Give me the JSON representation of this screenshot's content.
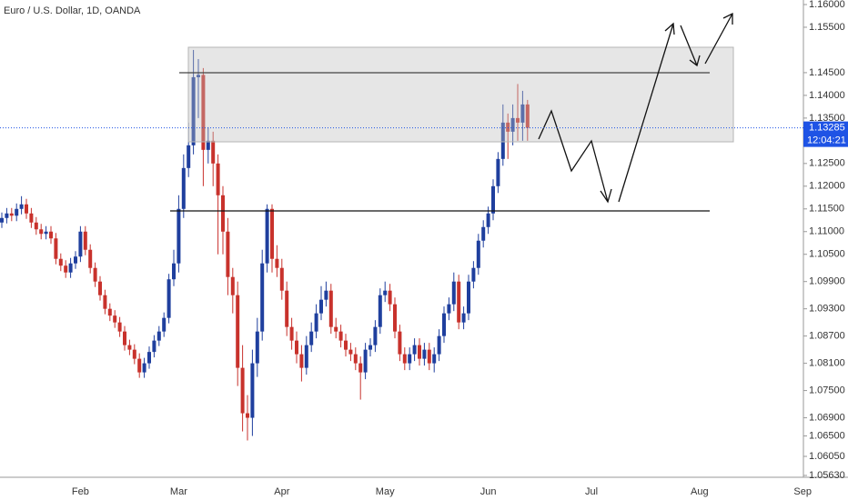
{
  "chart_data": {
    "type": "candlestick",
    "title": "Euro / U.S. Dollar, 1D, OANDA",
    "categories": [
      null,
      null,
      null,
      null,
      null,
      null,
      null,
      null,
      null,
      null,
      null,
      null,
      null,
      null,
      null,
      null,
      "Feb",
      null,
      null,
      null,
      null,
      null,
      null,
      null,
      null,
      null,
      null,
      null,
      null,
      null,
      null,
      null,
      null,
      null,
      null,
      null,
      "Mar",
      null,
      null,
      null,
      null,
      null,
      null,
      null,
      null,
      null,
      null,
      null,
      null,
      null,
      null,
      null,
      null,
      null,
      null,
      null,
      null,
      "Apr",
      null,
      null,
      null,
      null,
      null,
      null,
      null,
      null,
      null,
      null,
      null,
      null,
      null,
      null,
      null,
      null,
      null,
      null,
      null,
      null,
      "May",
      null,
      null,
      null,
      null,
      null,
      null,
      null,
      null,
      null,
      null,
      null,
      null,
      null,
      null,
      null,
      null,
      null,
      null,
      null,
      null,
      "Jun",
      null,
      null,
      null,
      null,
      null,
      null,
      null,
      null,
      null,
      null,
      null,
      null,
      null,
      null,
      null,
      null,
      null,
      null,
      null,
      null,
      "Jul",
      null,
      null,
      null,
      null,
      null,
      null,
      null,
      null,
      null,
      null,
      null,
      null,
      null,
      null,
      null,
      null,
      null,
      null,
      null,
      null,
      null,
      "Aug",
      null,
      null,
      null,
      null,
      null,
      null,
      null,
      null,
      null,
      null,
      null,
      null,
      null,
      null,
      null,
      null,
      null,
      null,
      null,
      null,
      "Sep"
    ],
    "open": [
      1.112,
      1.113,
      1.114,
      1.1135,
      1.115,
      1.116,
      1.114,
      1.112,
      1.1105,
      1.1095,
      1.11,
      1.1085,
      1.104,
      1.1025,
      1.101,
      1.103,
      1.1045,
      1.11,
      1.106,
      1.102,
      1.099,
      1.096,
      1.093,
      1.0915,
      1.09,
      1.088,
      1.085,
      1.084,
      1.082,
      1.079,
      1.081,
      1.0835,
      1.086,
      1.088,
      1.091,
      1.0995,
      1.103,
      1.115,
      1.124,
      1.129,
      1.144,
      1.1445,
      1.128,
      1.13,
      1.125,
      1.118,
      1.11,
      1.1,
      1.096,
      1.08,
      1.07,
      1.069,
      1.081,
      1.088,
      1.103,
      1.115,
      1.104,
      1.102,
      1.097,
      1.089,
      1.086,
      1.083,
      1.08,
      1.085,
      1.088,
      1.092,
      1.095,
      1.097,
      1.089,
      1.088,
      1.086,
      1.084,
      1.083,
      1.081,
      1.079,
      1.084,
      1.085,
      1.089,
      1.096,
      1.097,
      1.094,
      1.088,
      1.083,
      1.081,
      1.083,
      1.085,
      1.082,
      1.084,
      1.081,
      1.083,
      1.087,
      1.092,
      1.094,
      1.099,
      1.09,
      1.092,
      1.099,
      1.102,
      1.108,
      1.111,
      1.114,
      1.12,
      1.126,
      1.134,
      1.132,
      1.135,
      1.134,
      1.138,
      null,
      null,
      null,
      null,
      null,
      null,
      null,
      null,
      null,
      null,
      null,
      null,
      null,
      null,
      null,
      null,
      null,
      null,
      null,
      null,
      null,
      null,
      null,
      null,
      null,
      null,
      null,
      null,
      null,
      null,
      null,
      null,
      null,
      null,
      null,
      null,
      null,
      null,
      null,
      null,
      null,
      null,
      null,
      null,
      null,
      null,
      null,
      null,
      null,
      null,
      null,
      null,
      null,
      null,
      null,
      null
    ],
    "high": [
      1.1142,
      1.1152,
      1.1152,
      1.1162,
      1.1178,
      1.1172,
      1.1152,
      1.1132,
      1.1117,
      1.1112,
      1.1112,
      1.1097,
      1.1052,
      1.1037,
      1.1042,
      1.1057,
      1.1112,
      1.1112,
      1.1072,
      1.1032,
      1.1002,
      1.0972,
      1.0942,
      1.0927,
      1.0912,
      1.0892,
      1.0862,
      1.0852,
      1.0832,
      1.0822,
      1.0847,
      1.0872,
      1.0892,
      1.0922,
      1.1007,
      1.106,
      1.118,
      1.127,
      1.134,
      1.15,
      1.148,
      1.146,
      1.133,
      1.132,
      1.127,
      1.12,
      1.113,
      1.102,
      1.099,
      1.085,
      1.074,
      1.084,
      1.091,
      1.106,
      1.116,
      1.116,
      1.107,
      1.104,
      1.099,
      1.091,
      1.088,
      1.085,
      1.087,
      1.09,
      1.094,
      1.098,
      1.099,
      1.0985,
      1.091,
      1.0895,
      1.0875,
      1.0855,
      1.0845,
      1.0825,
      1.0855,
      1.0865,
      1.0905,
      1.0975,
      1.099,
      1.0985,
      1.0955,
      1.0895,
      1.0845,
      1.0845,
      1.0865,
      1.0865,
      1.0855,
      1.0855,
      1.0845,
      1.0885,
      1.0935,
      1.0955,
      1.101,
      1.1005,
      1.0935,
      1.1005,
      1.1035,
      1.1095,
      1.1125,
      1.1155,
      1.1215,
      1.1275,
      1.138,
      1.136,
      1.138,
      1.1425,
      1.141,
      1.139,
      null,
      null,
      null,
      null,
      null,
      null,
      null,
      null,
      null,
      null,
      null,
      null,
      null,
      null,
      null,
      null,
      null,
      null,
      null,
      null,
      null,
      null,
      null,
      null,
      null,
      null,
      null,
      null,
      null,
      null,
      null,
      null,
      null,
      null,
      null,
      null,
      null,
      null,
      null,
      null,
      null,
      null,
      null,
      null,
      null,
      null,
      null,
      null,
      null,
      null,
      null,
      null,
      null,
      null,
      null,
      null
    ],
    "low": [
      1.1108,
      1.1118,
      1.1123,
      1.1123,
      1.1138,
      1.1128,
      1.1108,
      1.1093,
      1.1083,
      1.1083,
      1.1073,
      1.1028,
      1.1013,
      1.0998,
      1.0998,
      1.1018,
      1.1033,
      1.1048,
      1.1008,
      1.0978,
      1.0948,
      1.0918,
      1.0903,
      1.0888,
      1.0868,
      1.0838,
      1.0828,
      1.0808,
      1.0778,
      1.0778,
      1.0798,
      1.0823,
      1.0848,
      1.0868,
      1.0898,
      1.098,
      1.101,
      1.113,
      1.122,
      1.127,
      1.135,
      1.12,
      1.125,
      1.12,
      1.105,
      1.105,
      1.096,
      1.092,
      1.076,
      1.066,
      1.064,
      1.065,
      1.078,
      1.086,
      1.101,
      1.101,
      1.1,
      1.095,
      1.087,
      1.084,
      1.081,
      1.077,
      1.0785,
      1.0835,
      1.0865,
      1.0905,
      1.0935,
      1.0875,
      1.0865,
      1.0845,
      1.0825,
      1.0815,
      1.0795,
      1.073,
      1.0775,
      1.0825,
      1.0835,
      1.0875,
      1.0945,
      1.0925,
      1.0865,
      1.0815,
      1.0795,
      1.0795,
      1.0815,
      1.0805,
      1.0805,
      1.0795,
      1.079,
      1.0815,
      1.0855,
      1.0905,
      1.0925,
      1.0885,
      1.0885,
      1.0905,
      1.0975,
      1.1005,
      1.1065,
      1.1095,
      1.1125,
      1.1185,
      1.1245,
      1.126,
      1.129,
      1.13,
      1.13,
      1.13,
      null,
      null,
      null,
      null,
      null,
      null,
      null,
      null,
      null,
      null,
      null,
      null,
      null,
      null,
      null,
      null,
      null,
      null,
      null,
      null,
      null,
      null,
      null,
      null,
      null,
      null,
      null,
      null,
      null,
      null,
      null,
      null,
      null,
      null,
      null,
      null,
      null,
      null,
      null,
      null,
      null,
      null,
      null,
      null,
      null,
      null,
      null,
      null,
      null,
      null,
      null,
      null,
      null,
      null,
      null,
      null
    ],
    "close": [
      1.113,
      1.114,
      1.1135,
      1.115,
      1.116,
      1.114,
      1.112,
      1.1105,
      1.1095,
      1.11,
      1.1085,
      1.104,
      1.1025,
      1.101,
      1.103,
      1.1045,
      1.11,
      1.106,
      1.102,
      1.099,
      1.096,
      1.093,
      1.0915,
      1.09,
      1.088,
      1.085,
      1.084,
      1.082,
      1.079,
      1.081,
      1.0835,
      1.086,
      1.088,
      1.091,
      1.0995,
      1.103,
      1.115,
      1.124,
      1.129,
      1.144,
      1.1445,
      1.128,
      1.13,
      1.125,
      1.118,
      1.11,
      1.1,
      1.096,
      1.08,
      1.07,
      1.069,
      1.081,
      1.088,
      1.103,
      1.115,
      1.104,
      1.102,
      1.097,
      1.089,
      1.086,
      1.083,
      1.08,
      1.085,
      1.088,
      1.092,
      1.095,
      1.097,
      1.089,
      1.088,
      1.086,
      1.084,
      1.083,
      1.081,
      1.079,
      1.084,
      1.085,
      1.089,
      1.096,
      1.097,
      1.094,
      1.088,
      1.083,
      1.081,
      1.083,
      1.085,
      1.082,
      1.084,
      1.081,
      1.083,
      1.087,
      1.092,
      1.094,
      1.099,
      1.09,
      1.092,
      1.099,
      1.102,
      1.108,
      1.111,
      1.114,
      1.12,
      1.126,
      1.134,
      1.132,
      1.135,
      1.134,
      1.138,
      1.13285,
      null,
      null,
      null,
      null,
      null,
      null,
      null,
      null,
      null,
      null,
      null,
      null,
      null,
      null,
      null,
      null,
      null,
      null,
      null,
      null,
      null,
      null,
      null,
      null,
      null,
      null,
      null,
      null,
      null,
      null,
      null,
      null,
      null,
      null,
      null,
      null,
      null,
      null,
      null,
      null,
      null,
      null,
      null,
      null,
      null,
      null,
      null,
      null,
      null,
      null,
      null,
      null,
      null,
      null,
      null,
      null
    ],
    "up_color": "#1f3f9e",
    "down_color": "#c8322c",
    "current_price": 1.13285,
    "countdown": "12:04:21",
    "price_label_color": "#1e53e5",
    "ylim": [
      1.0559,
      1.161
    ],
    "yticks": [
      {
        "value": 1.16,
        "label": "1.16000"
      },
      {
        "value": 1.155,
        "label": "1.15500"
      },
      {
        "value": 1.145,
        "label": "1.14500"
      },
      {
        "value": 1.14,
        "label": "1.14000"
      },
      {
        "value": 1.135,
        "label": "1.13500"
      },
      {
        "value": 1.125,
        "label": "1.12500"
      },
      {
        "value": 1.12,
        "label": "1.12000"
      },
      {
        "value": 1.115,
        "label": "1.11500"
      },
      {
        "value": 1.11,
        "label": "1.11000"
      },
      {
        "value": 1.105,
        "label": "1.10500"
      },
      {
        "value": 1.099,
        "label": "1.09900"
      },
      {
        "value": 1.093,
        "label": "1.09300"
      },
      {
        "value": 1.087,
        "label": "1.08700"
      },
      {
        "value": 1.081,
        "label": "1.08100"
      },
      {
        "value": 1.075,
        "label": "1.07500"
      },
      {
        "value": 1.069,
        "label": "1.06900"
      },
      {
        "value": 1.065,
        "label": "1.06500"
      },
      {
        "value": 1.0605,
        "label": "1.06050"
      },
      {
        "value": 1.0563,
        "label": "1.05630"
      }
    ],
    "grid": false
  }
}
